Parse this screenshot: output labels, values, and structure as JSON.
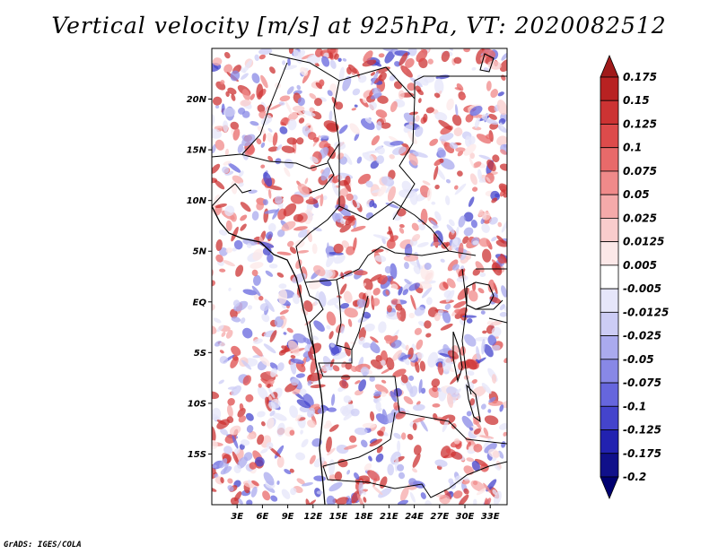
{
  "title": "Vertical velocity [m/s] at 925hPa, VT: 2020082512",
  "credit": "GrADS: IGES/COLA",
  "map": {
    "variable": "Vertical velocity",
    "units": "m/s",
    "level": "925hPa",
    "valid_time": "2020082512",
    "lon_range": [
      0,
      35
    ],
    "lat_range": [
      -20,
      25
    ],
    "lon_ticks": [
      "3E",
      "6E",
      "9E",
      "12E",
      "15E",
      "18E",
      "21E",
      "24E",
      "27E",
      "30E",
      "33E"
    ],
    "lat_ticks": [
      "20N",
      "15N",
      "10N",
      "5N",
      "EQ",
      "5S",
      "10S",
      "15S"
    ]
  },
  "colorbar": {
    "labels": [
      "0.175",
      "0.15",
      "0.125",
      "0.1",
      "0.075",
      "0.05",
      "0.025",
      "0.0125",
      "0.005",
      "-0.005",
      "-0.0125",
      "-0.025",
      "-0.05",
      "-0.075",
      "-0.1",
      "-0.125",
      "-0.175",
      "-0.2"
    ],
    "colors": [
      "#a01a1a",
      "#b82222",
      "#cc3333",
      "#dd4b4b",
      "#e86a6a",
      "#f08a8a",
      "#f5aaaa",
      "#f9cccc",
      "#fce8e8",
      "#ffffff",
      "#e6e6fa",
      "#ccccf5",
      "#aaaaee",
      "#8888e6",
      "#6666dd",
      "#4444cc",
      "#2222b0",
      "#10108a",
      "#000070"
    ]
  }
}
